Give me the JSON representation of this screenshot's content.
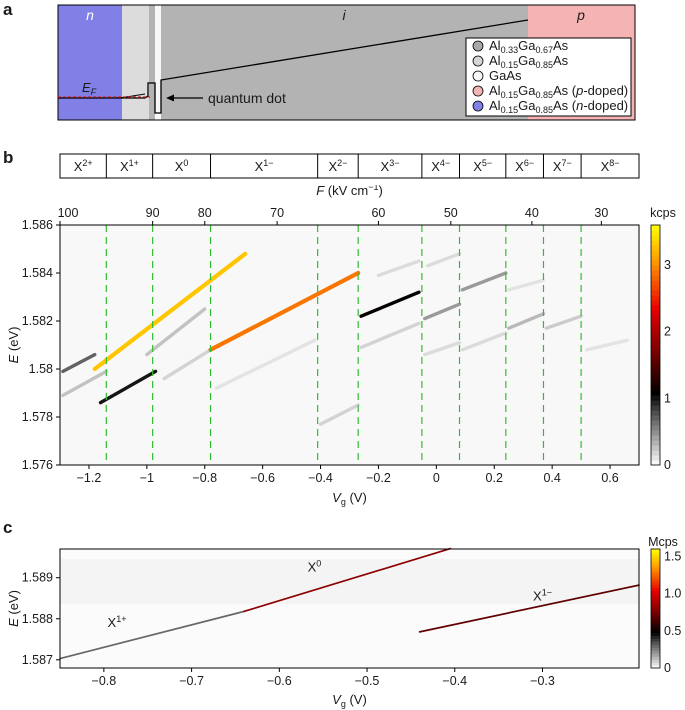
{
  "panels": {
    "a": "a",
    "b": "b",
    "c": "c"
  },
  "band_diagram": {
    "regions": {
      "n": "n",
      "i": "i",
      "p": "p"
    },
    "fermi_label": "E",
    "fermi_sub": "F",
    "qd_label": "quantum dot",
    "colors": {
      "n_doped": "#8080e6",
      "p_doped": "#f4b4b4",
      "algaas33": "#b3b3b3",
      "algaas15": "#dcdcdc",
      "gaas": "#f7f7f7"
    },
    "legend": [
      {
        "pre": "Al",
        "s1": "0.33",
        "mid": "Ga",
        "s2": "0.67",
        "post": "As",
        "dope": "",
        "color": "#a8a8a8"
      },
      {
        "pre": "Al",
        "s1": "0.15",
        "mid": "Ga",
        "s2": "0.85",
        "post": "As",
        "dope": "",
        "color": "#d6d6d6"
      },
      {
        "pre": "GaAs",
        "s1": "",
        "mid": "",
        "s2": "",
        "post": "",
        "dope": "",
        "color": "#f7f7f7"
      },
      {
        "pre": "Al",
        "s1": "0.15",
        "mid": "Ga",
        "s2": "0.85",
        "post": "As (",
        "dope": "p-doped)",
        "color": "#f4b4b4"
      },
      {
        "pre": "Al",
        "s1": "0.15",
        "mid": "Ga",
        "s2": "0.85",
        "post": "As (",
        "dope": "n-doped)",
        "color": "#8080e6"
      }
    ]
  },
  "charge_states": [
    {
      "base": "X",
      "sup": "2+",
      "vg_from": -1.3,
      "vg_to": -1.14
    },
    {
      "base": "X",
      "sup": "1+",
      "vg_from": -1.14,
      "vg_to": -0.98
    },
    {
      "base": "X",
      "sup": "0",
      "vg_from": -0.98,
      "vg_to": -0.78
    },
    {
      "base": "X",
      "sup": "1−",
      "vg_from": -0.78,
      "vg_to": -0.41
    },
    {
      "base": "X",
      "sup": "2−",
      "vg_from": -0.41,
      "vg_to": -0.27
    },
    {
      "base": "X",
      "sup": "3−",
      "vg_from": -0.27,
      "vg_to": -0.05
    },
    {
      "base": "X",
      "sup": "4−",
      "vg_from": -0.05,
      "vg_to": 0.08
    },
    {
      "base": "X",
      "sup": "5−",
      "vg_from": 0.08,
      "vg_to": 0.24
    },
    {
      "base": "X",
      "sup": "6−",
      "vg_from": 0.24,
      "vg_to": 0.37
    },
    {
      "base": "X",
      "sup": "7−",
      "vg_from": 0.37,
      "vg_to": 0.5
    },
    {
      "base": "X",
      "sup": "8−",
      "vg_from": 0.5,
      "vg_to": 0.7
    }
  ],
  "chart_data": [
    {
      "type": "heatmap",
      "panel": "b",
      "x_label": "V",
      "x_label_sub": "g",
      "x_label_unit": " (V)",
      "y_label": "E",
      "y_label_unit": " (eV)",
      "top_axis_label": "F",
      "top_axis_unit": " (kV cm",
      "top_axis_unit_sup": "−1",
      "top_axis_unit_end": ")",
      "xlim": [
        -1.3,
        0.7
      ],
      "ylim": [
        1.576,
        1.586
      ],
      "x_ticks": [
        -1.2,
        -1.0,
        -0.8,
        -0.6,
        -0.4,
        -0.2,
        0,
        0.2,
        0.4,
        0.6
      ],
      "x_tick_labels": [
        "−1.2",
        "−1",
        "−0.8",
        "−0.6",
        "−0.4",
        "−0.2",
        "0",
        "0.2",
        "0.4",
        "0.6"
      ],
      "y_ticks": [
        1.576,
        1.578,
        1.58,
        1.582,
        1.584,
        1.586
      ],
      "y_tick_labels": [
        "1.576",
        "1.578",
        "1.58",
        "1.582",
        "1.584",
        "1.586"
      ],
      "top_ticks": [
        {
          "label": "100",
          "vg": -1.3
        },
        {
          "label": "90",
          "vg": -0.98
        },
        {
          "label": "80",
          "vg": -0.8
        },
        {
          "label": "70",
          "vg": -0.55
        },
        {
          "label": "60",
          "vg": -0.2
        },
        {
          "label": "50",
          "vg": 0.05
        },
        {
          "label": "40",
          "vg": 0.33
        },
        {
          "label": "30",
          "vg": 0.57
        }
      ],
      "dividers_vg": [
        -1.14,
        -0.98,
        -0.78,
        -0.41,
        -0.27,
        -0.05,
        0.08,
        0.24,
        0.37,
        0.5
      ],
      "colorbar": {
        "unit": "kcps",
        "min": 0,
        "max": 3.6,
        "ticks": [
          0,
          1,
          2,
          3
        ],
        "tick_labels": [
          "0",
          "1",
          "2",
          "3"
        ]
      },
      "lines": [
        {
          "x0": -1.29,
          "y0": 1.5799,
          "x1": -1.18,
          "y1": 1.5806,
          "i": 0.7
        },
        {
          "x0": -1.29,
          "y0": 1.5789,
          "x1": -1.14,
          "y1": 1.5799,
          "i": 0.35
        },
        {
          "x0": -1.18,
          "y0": 1.58,
          "x1": -0.66,
          "y1": 1.5848,
          "i": 3.3
        },
        {
          "x0": -1.16,
          "y0": 1.5786,
          "x1": -0.97,
          "y1": 1.5799,
          "i": 1.0
        },
        {
          "x0": -1.0,
          "y0": 1.5806,
          "x1": -0.8,
          "y1": 1.5825,
          "i": 0.35
        },
        {
          "x0": -0.94,
          "y0": 1.5796,
          "x1": -0.78,
          "y1": 1.5808,
          "i": 0.25
        },
        {
          "x0": -0.78,
          "y0": 1.5808,
          "x1": -0.27,
          "y1": 1.584,
          "i": 2.9
        },
        {
          "x0": -0.76,
          "y0": 1.5792,
          "x1": -0.42,
          "y1": 1.5812,
          "i": 0.15
        },
        {
          "x0": -0.4,
          "y0": 1.5777,
          "x1": -0.27,
          "y1": 1.5785,
          "i": 0.25
        },
        {
          "x0": -0.26,
          "y0": 1.5822,
          "x1": -0.06,
          "y1": 1.5832,
          "i": 1.1
        },
        {
          "x0": -0.26,
          "y0": 1.5809,
          "x1": -0.06,
          "y1": 1.5819,
          "i": 0.25
        },
        {
          "x0": -0.2,
          "y0": 1.5839,
          "x1": -0.06,
          "y1": 1.5845,
          "i": 0.2
        },
        {
          "x0": -0.04,
          "y0": 1.5821,
          "x1": 0.08,
          "y1": 1.5827,
          "i": 0.45
        },
        {
          "x0": -0.03,
          "y0": 1.5843,
          "x1": 0.08,
          "y1": 1.5848,
          "i": 0.2
        },
        {
          "x0": -0.04,
          "y0": 1.5806,
          "x1": 0.08,
          "y1": 1.5811,
          "i": 0.2
        },
        {
          "x0": 0.09,
          "y0": 1.5833,
          "x1": 0.24,
          "y1": 1.584,
          "i": 0.45
        },
        {
          "x0": 0.09,
          "y0": 1.5808,
          "x1": 0.24,
          "y1": 1.5815,
          "i": 0.2
        },
        {
          "x0": 0.25,
          "y0": 1.5817,
          "x1": 0.37,
          "y1": 1.5823,
          "i": 0.4
        },
        {
          "x0": 0.25,
          "y0": 1.5833,
          "x1": 0.37,
          "y1": 1.5837,
          "i": 0.15
        },
        {
          "x0": 0.38,
          "y0": 1.5817,
          "x1": 0.5,
          "y1": 1.5822,
          "i": 0.3
        },
        {
          "x0": 0.52,
          "y0": 1.5808,
          "x1": 0.66,
          "y1": 1.5812,
          "i": 0.15
        }
      ]
    },
    {
      "type": "heatmap",
      "panel": "c",
      "x_label": "V",
      "x_label_sub": "g",
      "x_label_unit": " (V)",
      "y_label": "E",
      "y_label_unit": " (eV)",
      "xlim": [
        -0.85,
        -0.19
      ],
      "ylim": [
        1.5868,
        1.5897
      ],
      "x_ticks": [
        -0.8,
        -0.7,
        -0.6,
        -0.5,
        -0.4,
        -0.3
      ],
      "x_tick_labels": [
        "−0.8",
        "−0.7",
        "−0.6",
        "−0.5",
        "−0.4",
        "−0.3"
      ],
      "y_ticks": [
        1.587,
        1.588,
        1.589
      ],
      "y_tick_labels": [
        "1.587",
        "1.588",
        "1.589"
      ],
      "colorbar": {
        "unit": "Mcps",
        "min": 0,
        "max": 1.6,
        "ticks": [
          0,
          0.5,
          1.0,
          1.5
        ],
        "tick_labels": [
          "0",
          "0.5",
          "1.0",
          "1.5"
        ]
      },
      "lines": [
        {
          "x0": -0.85,
          "y0": 1.58703,
          "x1": -0.64,
          "y1": 1.58818,
          "i": 0.3
        },
        {
          "x0": -0.64,
          "y0": 1.58818,
          "x1": -0.405,
          "y1": 1.58971,
          "i": 0.8
        },
        {
          "x0": -0.44,
          "y0": 1.58768,
          "x1": -0.19,
          "y1": 1.58882,
          "i": 0.7
        }
      ],
      "annotations": [
        {
          "base": "X",
          "sup": "1+",
          "x": -0.785,
          "y": 1.5878
        },
        {
          "base": "X",
          "sup": "0",
          "x": -0.56,
          "y": 1.58915
        },
        {
          "base": "X",
          "sup": "1−",
          "x": -0.3,
          "y": 1.58845
        }
      ]
    }
  ]
}
